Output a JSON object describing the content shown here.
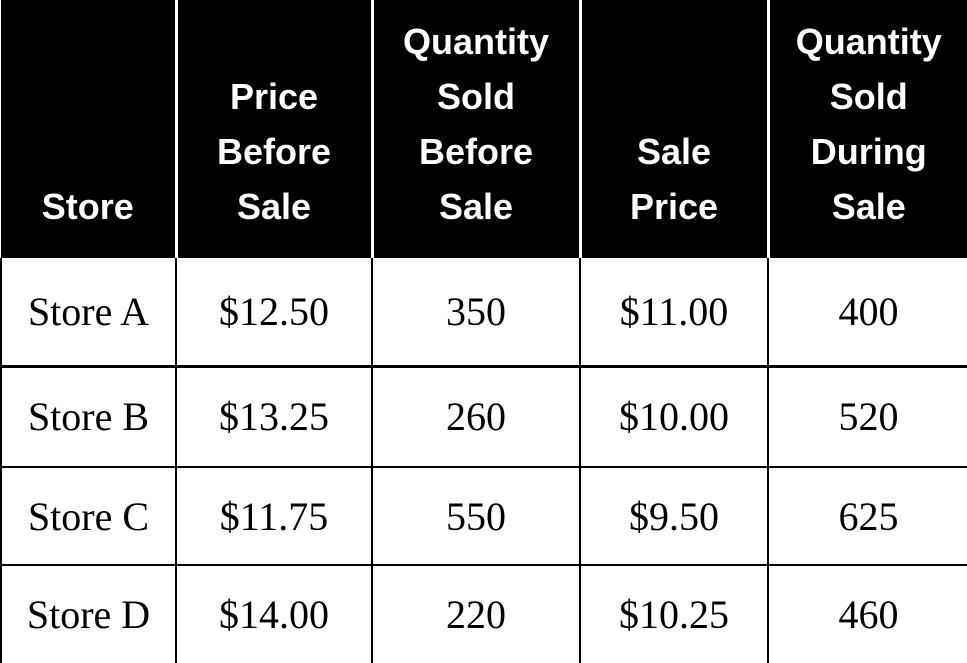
{
  "table": {
    "headers": [
      "Store",
      "Price\nBefore\nSale",
      "Quantity\nSold\nBefore\nSale",
      "Sale\nPrice",
      "Quantity\nSold\nDuring\nSale"
    ],
    "rows": [
      [
        "Store A",
        "$12.50",
        "350",
        "$11.00",
        "400"
      ],
      [
        "Store B",
        "$13.25",
        "260",
        "$10.00",
        "520"
      ],
      [
        "Store C",
        "$11.75",
        "550",
        "$9.50",
        "625"
      ],
      [
        "Store D",
        "$14.00",
        "220",
        "$10.25",
        "460"
      ]
    ]
  }
}
